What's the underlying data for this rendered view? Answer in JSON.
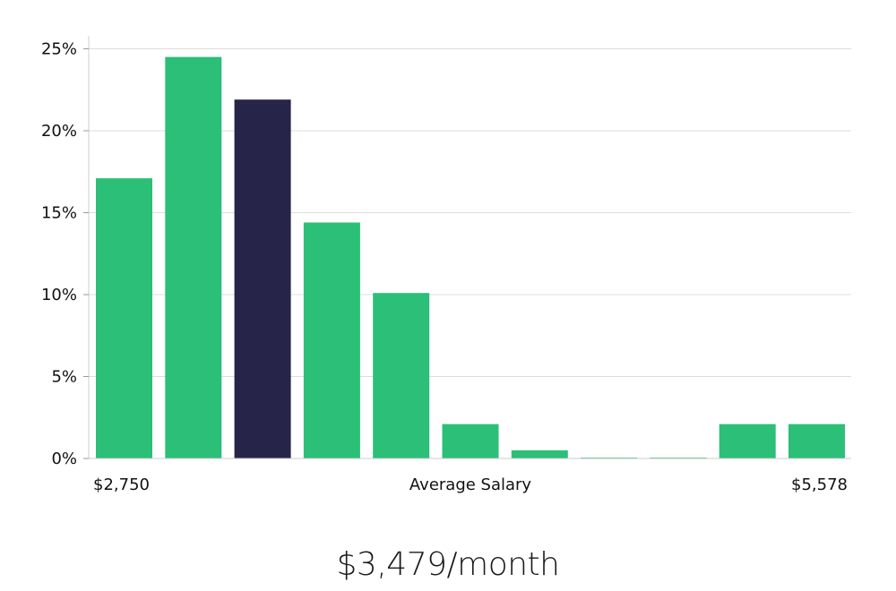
{
  "chart_data": {
    "type": "bar",
    "categories": [
      "1",
      "2",
      "3",
      "4",
      "5",
      "6",
      "7",
      "8",
      "9",
      "10",
      "11"
    ],
    "values": [
      17.1,
      24.5,
      21.9,
      14.4,
      10.1,
      2.1,
      0.5,
      0.05,
      0.05,
      2.1,
      2.1
    ],
    "highlight_index": 2,
    "ylim": [
      0,
      25
    ],
    "yticks": [
      0,
      5,
      10,
      15,
      20,
      25
    ],
    "ytick_labels": [
      "0%",
      "5%",
      "10%",
      "15%",
      "20%",
      "25%"
    ],
    "x_min_label": "$2,750",
    "xlabel": "Average Salary",
    "x_max_label": "$5,578",
    "grid": true,
    "bar_color": "#2bbf77",
    "highlight_color": "#27244a",
    "grid_color": "#dddddd"
  },
  "headline": "$3,479/month"
}
